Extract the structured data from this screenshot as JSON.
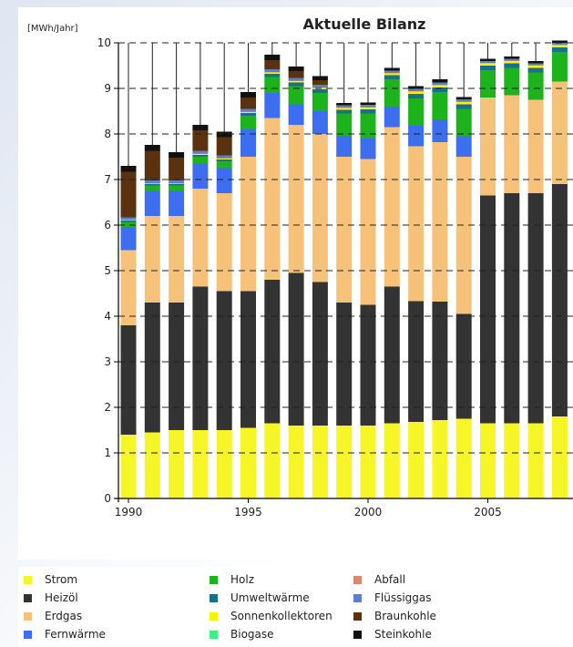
{
  "chart_data": {
    "type": "bar",
    "stacked": true,
    "title": "Aktuelle Bilanz",
    "ylabel": "[MWh/Jahr]",
    "xlabel": "",
    "ylim": [
      0,
      10
    ],
    "yticks": [
      "0",
      "1",
      "2",
      "3",
      "4",
      "5",
      "6",
      "7",
      "8",
      "9",
      "10"
    ],
    "xticks": [
      {
        "year": 1990,
        "label": "1990"
      },
      {
        "year": 1995,
        "label": "1995"
      },
      {
        "year": 2000,
        "label": "2000"
      },
      {
        "year": 2005,
        "label": "2005"
      }
    ],
    "years": [
      1990,
      1991,
      1992,
      1993,
      1994,
      1995,
      1996,
      1997,
      1998,
      1999,
      2000,
      2001,
      2002,
      2003,
      2004,
      2005,
      2006,
      2007,
      2008
    ],
    "series": [
      {
        "name": "Strom",
        "color": "#f5f528",
        "values": [
          1.4,
          1.45,
          1.5,
          1.5,
          1.5,
          1.55,
          1.65,
          1.6,
          1.6,
          1.6,
          1.6,
          1.65,
          1.68,
          1.72,
          1.75,
          1.65,
          1.65,
          1.65,
          1.8
        ]
      },
      {
        "name": "Heizöl",
        "color": "#333333",
        "values": [
          2.4,
          2.85,
          2.8,
          3.15,
          3.05,
          3.0,
          3.15,
          3.35,
          3.15,
          2.7,
          2.65,
          3.0,
          2.65,
          2.6,
          2.3,
          5.0,
          5.05,
          5.05,
          5.1
        ]
      },
      {
        "name": "Erdgas",
        "color": "#f6c27a",
        "values": [
          1.65,
          1.9,
          1.9,
          2.15,
          2.15,
          2.95,
          3.55,
          3.25,
          3.25,
          3.2,
          3.2,
          3.5,
          3.4,
          3.5,
          3.45,
          2.15,
          2.15,
          2.05,
          2.25
        ]
      },
      {
        "name": "Fernwärme",
        "color": "#3d6ef0",
        "values": [
          0.5,
          0.55,
          0.55,
          0.55,
          0.55,
          0.6,
          0.55,
          0.45,
          0.5,
          0.45,
          0.45,
          0.45,
          0.45,
          0.5,
          0.45,
          0.0,
          0.0,
          0.0,
          0.0
        ]
      },
      {
        "name": "Holz",
        "color": "#1db31d",
        "values": [
          0.12,
          0.12,
          0.12,
          0.15,
          0.15,
          0.3,
          0.35,
          0.4,
          0.4,
          0.5,
          0.55,
          0.6,
          0.6,
          0.6,
          0.6,
          0.6,
          0.6,
          0.6,
          0.65
        ]
      },
      {
        "name": "Umweltwärme",
        "color": "#1b6f8a",
        "values": [
          0.03,
          0.03,
          0.03,
          0.04,
          0.04,
          0.06,
          0.07,
          0.08,
          0.08,
          0.08,
          0.09,
          0.09,
          0.1,
          0.1,
          0.1,
          0.1,
          0.1,
          0.1,
          0.1
        ]
      },
      {
        "name": "Sonnenkollektoren",
        "color": "#f5f500",
        "values": [
          0.01,
          0.01,
          0.01,
          0.02,
          0.02,
          0.02,
          0.03,
          0.03,
          0.03,
          0.04,
          0.04,
          0.04,
          0.05,
          0.05,
          0.05,
          0.05,
          0.05,
          0.05,
          0.05
        ]
      },
      {
        "name": "Biogase",
        "color": "#3df080",
        "values": [
          0.0,
          0.0,
          0.0,
          0.0,
          0.0,
          0.0,
          0.0,
          0.0,
          0.0,
          0.0,
          0.0,
          0.0,
          0.0,
          0.0,
          0.0,
          0.0,
          0.0,
          0.0,
          0.0
        ]
      },
      {
        "name": "Abfall",
        "color": "#d98870",
        "values": [
          0.01,
          0.01,
          0.01,
          0.01,
          0.01,
          0.01,
          0.01,
          0.01,
          0.01,
          0.01,
          0.01,
          0.01,
          0.01,
          0.01,
          0.01,
          0.01,
          0.01,
          0.01,
          0.01
        ]
      },
      {
        "name": "Flüssiggas",
        "color": "#5f7fc4",
        "values": [
          0.05,
          0.06,
          0.06,
          0.06,
          0.06,
          0.06,
          0.06,
          0.06,
          0.06,
          0.05,
          0.05,
          0.05,
          0.05,
          0.05,
          0.05,
          0.04,
          0.04,
          0.04,
          0.04
        ]
      },
      {
        "name": "Braunkohle",
        "color": "#5a3210",
        "values": [
          1.0,
          0.65,
          0.5,
          0.45,
          0.4,
          0.25,
          0.2,
          0.15,
          0.1,
          0.0,
          0.0,
          0.0,
          0.0,
          0.0,
          0.0,
          0.0,
          0.0,
          0.0,
          0.0
        ]
      },
      {
        "name": "Steinkohle",
        "color": "#111111",
        "values": [
          0.13,
          0.13,
          0.12,
          0.12,
          0.12,
          0.12,
          0.12,
          0.1,
          0.09,
          0.05,
          0.05,
          0.06,
          0.06,
          0.07,
          0.05,
          0.05,
          0.05,
          0.05,
          0.05
        ]
      }
    ],
    "legend_placement": "bottom",
    "grid": true
  }
}
